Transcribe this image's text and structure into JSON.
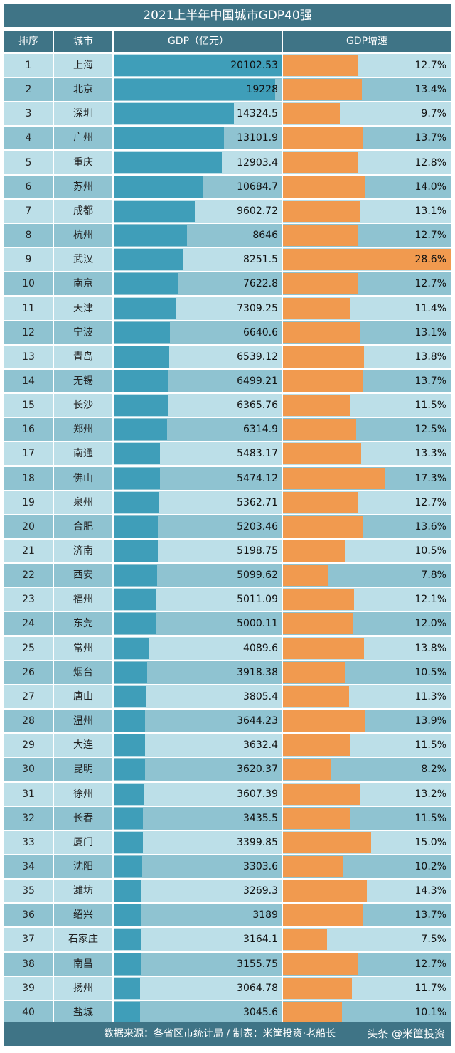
{
  "title": "2021上半年中国城市GDP40强",
  "headers": {
    "rank": "排序",
    "city": "城市",
    "gdp": "GDP（亿元）",
    "growth": "GDP增速"
  },
  "footer": {
    "source": "数据来源：各省区市统计局 / 制表：米筐投资·老船长",
    "credit": "头条 @米筐投资"
  },
  "colors": {
    "header": "#3f7486",
    "row_light": "#bcdfe8",
    "row_dark": "#8fc3d1",
    "gdp_bar": "#3f9eb9",
    "growth_bar": "#f19a4f"
  },
  "chart_data": {
    "type": "bar",
    "categories": [
      "上海",
      "北京",
      "深圳",
      "广州",
      "重庆",
      "苏州",
      "成都",
      "杭州",
      "武汉",
      "南京",
      "天津",
      "宁波",
      "青岛",
      "无锡",
      "长沙",
      "郑州",
      "南通",
      "佛山",
      "泉州",
      "合肥",
      "济南",
      "西安",
      "福州",
      "东莞",
      "常州",
      "烟台",
      "唐山",
      "温州",
      "大连",
      "昆明",
      "徐州",
      "长春",
      "厦门",
      "沈阳",
      "潍坊",
      "绍兴",
      "石家庄",
      "南昌",
      "扬州",
      "盐城"
    ],
    "ranks": [
      "1",
      "2",
      "3",
      "4",
      "5",
      "6",
      "7",
      "8",
      "9",
      "10",
      "11",
      "12",
      "13",
      "14",
      "15",
      "16",
      "17",
      "18",
      "19",
      "20",
      "21",
      "22",
      "23",
      "24",
      "25",
      "26",
      "27",
      "28",
      "29",
      "30",
      "31",
      "32",
      "33",
      "34",
      "35",
      "36",
      "37",
      "38",
      "39",
      "40"
    ],
    "series": [
      {
        "name": "GDP（亿元）",
        "values": [
          20102.53,
          19228,
          14324.5,
          13101.9,
          12903.4,
          10684.7,
          9602.72,
          8646,
          8251.5,
          7622.8,
          7309.25,
          6640.6,
          6539.12,
          6499.21,
          6365.76,
          6314.9,
          5483.17,
          5474.12,
          5362.71,
          5203.46,
          5198.75,
          5099.62,
          5011.09,
          5000.11,
          4089.6,
          3918.38,
          3805.4,
          3644.23,
          3632.4,
          3620.37,
          3607.39,
          3435.5,
          3399.85,
          3303.6,
          3269.3,
          3189,
          3164.1,
          3155.75,
          3064.78,
          3045.6
        ],
        "labels": [
          "20102.53",
          "19228",
          "14324.5",
          "13101.9",
          "12903.4",
          "10684.7",
          "9602.72",
          "8646",
          "8251.5",
          "7622.8",
          "7309.25",
          "6640.6",
          "6539.12",
          "6499.21",
          "6365.76",
          "6314.9",
          "5483.17",
          "5474.12",
          "5362.71",
          "5203.46",
          "5198.75",
          "5099.62",
          "5011.09",
          "5000.11",
          "4089.6",
          "3918.38",
          "3805.4",
          "3644.23",
          "3632.4",
          "3620.37",
          "3607.39",
          "3435.5",
          "3399.85",
          "3303.6",
          "3269.3",
          "3189",
          "3164.1",
          "3155.75",
          "3064.78",
          "3045.6"
        ]
      },
      {
        "name": "GDP增速",
        "values": [
          12.7,
          13.4,
          9.7,
          13.7,
          12.8,
          14.0,
          13.1,
          12.7,
          28.6,
          12.7,
          11.4,
          13.1,
          13.8,
          13.7,
          11.5,
          12.5,
          13.3,
          17.3,
          12.7,
          13.6,
          10.5,
          7.8,
          12.1,
          12.0,
          13.8,
          10.5,
          11.3,
          13.9,
          11.5,
          8.2,
          13.2,
          11.5,
          15.0,
          10.2,
          14.3,
          13.7,
          7.5,
          12.7,
          11.7,
          10.1
        ],
        "labels": [
          "12.7%",
          "13.4%",
          "9.7%",
          "13.7%",
          "12.8%",
          "14.0%",
          "13.1%",
          "12.7%",
          "28.6%",
          "12.7%",
          "11.4%",
          "13.1%",
          "13.8%",
          "13.7%",
          "11.5%",
          "12.5%",
          "13.3%",
          "17.3%",
          "12.7%",
          "13.6%",
          "10.5%",
          "7.8%",
          "12.1%",
          "12.0%",
          "13.8%",
          "10.5%",
          "11.3%",
          "13.9%",
          "11.5%",
          "8.2%",
          "13.2%",
          "11.5%",
          "15.0%",
          "10.2%",
          "14.3%",
          "13.7%",
          "7.5%",
          "12.7%",
          "11.7%",
          "10.1%"
        ]
      }
    ]
  }
}
